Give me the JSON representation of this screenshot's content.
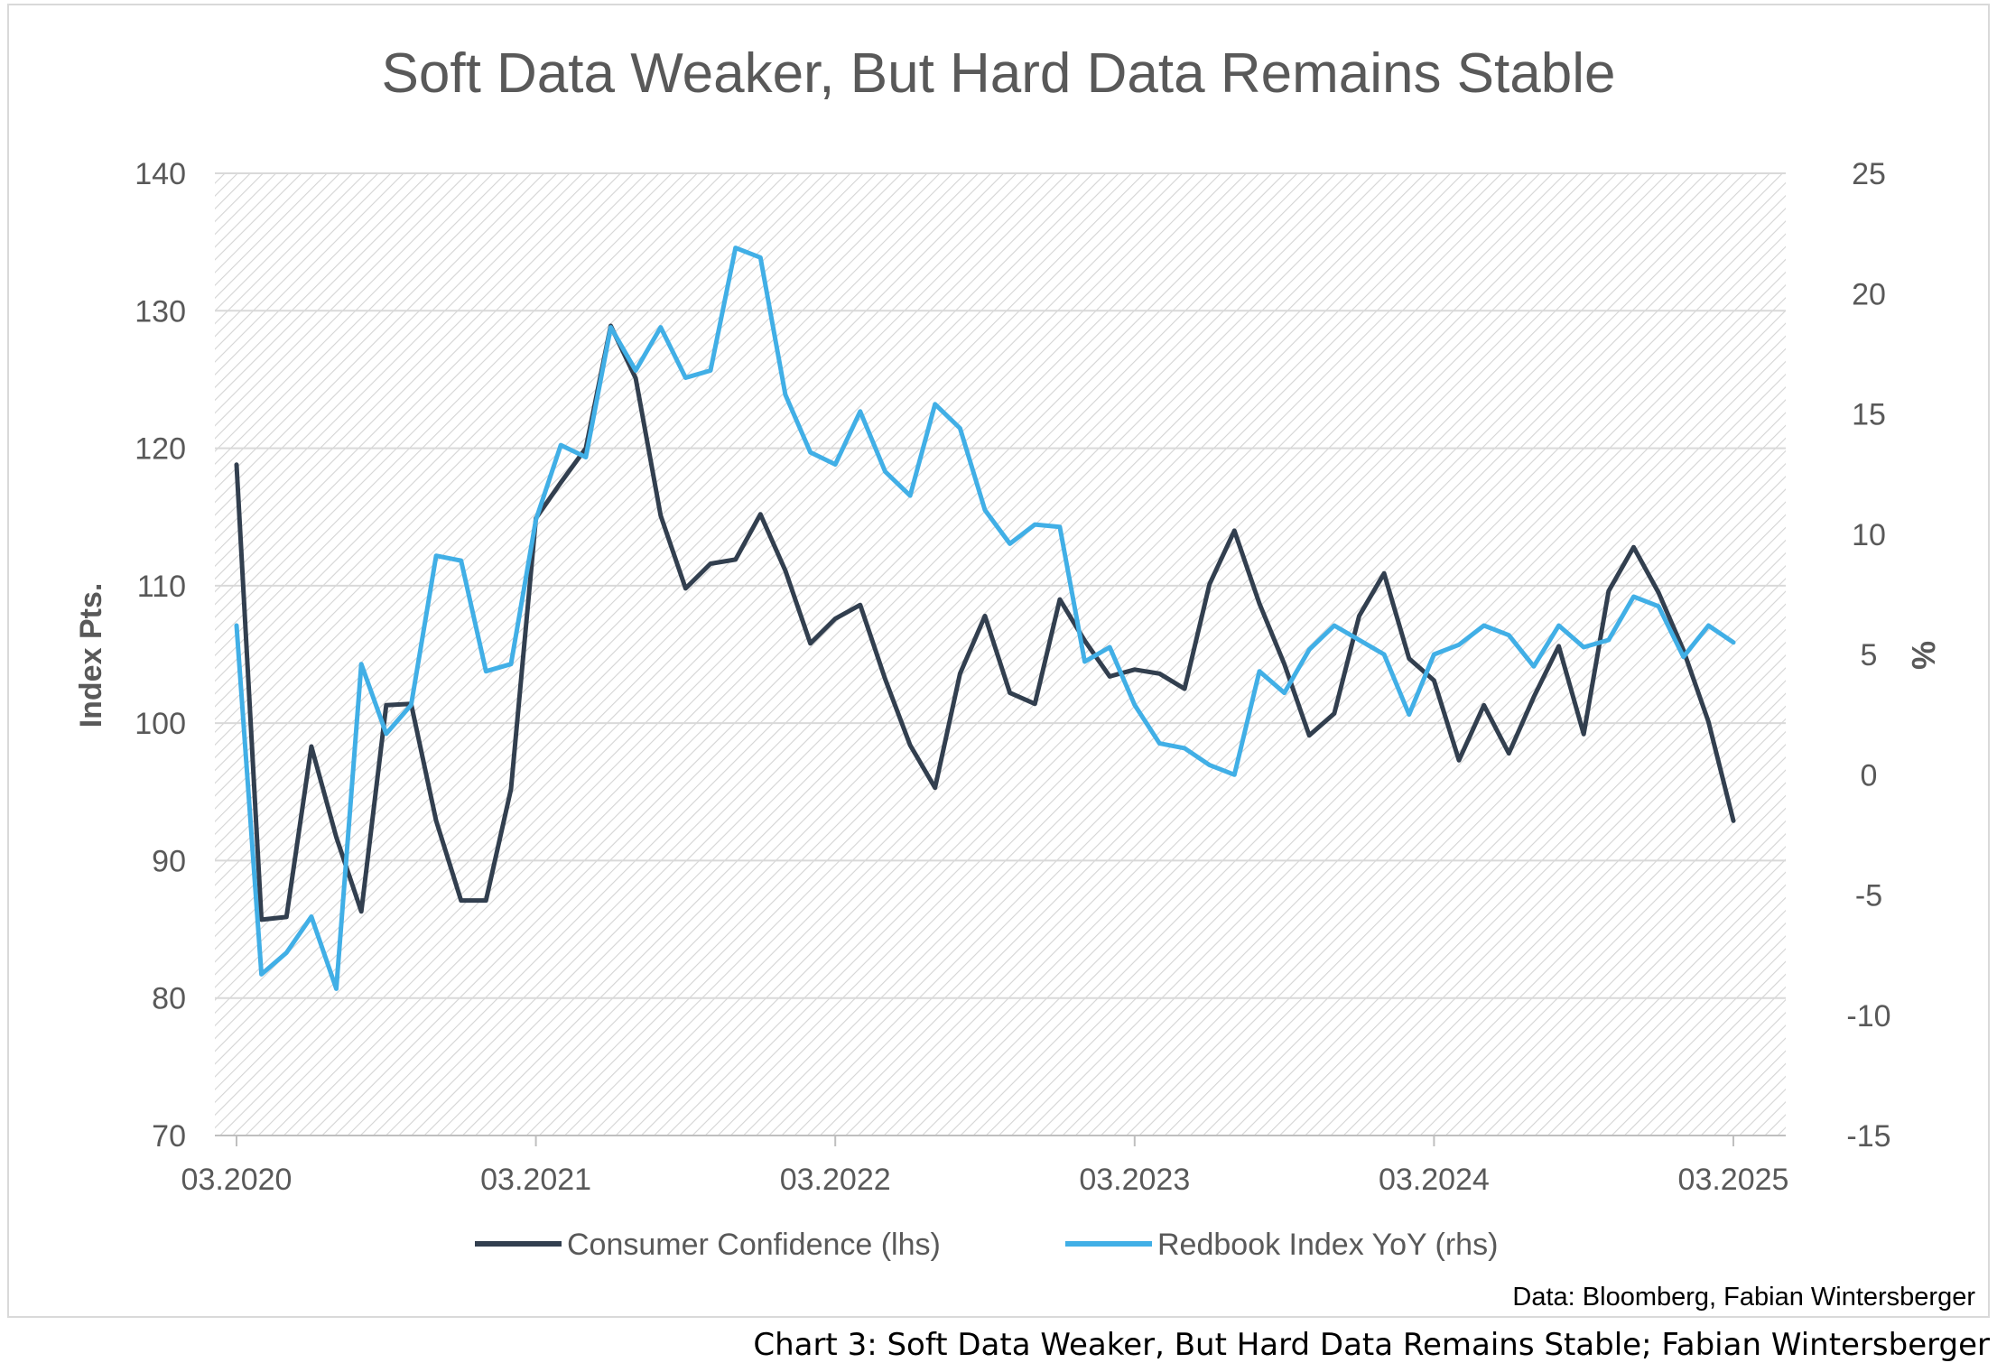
{
  "chart_data": {
    "type": "line",
    "title": "Soft Data Weaker, But Hard Data Remains Stable",
    "ylabel_left": "Index Pts.",
    "ylabel_right": "%",
    "ylim_left": [
      70,
      140
    ],
    "ylim_right": [
      -15,
      25
    ],
    "yticks_left": [
      "140",
      "130",
      "120",
      "110",
      "100",
      "90",
      "80",
      "70"
    ],
    "yticks_right": [
      "25",
      "20",
      "15",
      "10",
      "5",
      "0",
      "-5",
      "-10",
      "-15"
    ],
    "x_tick_labels": [
      "03.2020",
      "03.2021",
      "03.2022",
      "03.2023",
      "03.2024",
      "03.2025"
    ],
    "grid": true,
    "legend_position": "bottom",
    "source": "Data: Bloomberg, Fabian Wintersberger",
    "series": [
      {
        "name": "Consumer Confidence (lhs)",
        "axis": "left",
        "color": "#323f4f",
        "values": [
          118.8,
          85.7,
          85.9,
          98.3,
          91.7,
          86.3,
          101.3,
          101.4,
          92.9,
          87.1,
          87.1,
          95.2,
          114.9,
          117.5,
          120.0,
          128.9,
          125.1,
          115.1,
          109.8,
          111.6,
          111.9,
          115.2,
          111.1,
          105.8,
          107.6,
          108.6,
          103.2,
          98.4,
          95.3,
          103.6,
          107.8,
          102.2,
          101.4,
          109.0,
          106.0,
          103.4,
          103.9,
          103.6,
          102.5,
          110.1,
          114.0,
          108.7,
          104.3,
          99.1,
          100.7,
          107.8,
          110.9,
          104.7,
          103.1,
          97.3,
          101.3,
          97.8,
          101.9,
          105.6,
          99.2,
          109.6,
          112.8,
          109.5,
          105.3,
          100.1,
          92.9
        ]
      },
      {
        "name": "Redbook Index YoY (rhs)",
        "axis": "right",
        "color": "#41afe6",
        "values": [
          6.2,
          -8.3,
          -7.4,
          -5.9,
          -8.9,
          4.6,
          1.7,
          2.9,
          9.1,
          8.9,
          4.3,
          4.6,
          10.6,
          13.7,
          13.2,
          18.6,
          16.8,
          18.6,
          16.5,
          16.8,
          21.9,
          21.5,
          15.8,
          13.4,
          12.9,
          15.1,
          12.6,
          11.6,
          15.4,
          14.4,
          11.0,
          9.6,
          10.4,
          10.3,
          4.7,
          5.3,
          2.9,
          1.3,
          1.1,
          0.4,
          0.0,
          4.3,
          3.4,
          5.2,
          6.2,
          5.6,
          5.0,
          2.5,
          5.0,
          5.4,
          6.2,
          5.8,
          4.5,
          6.2,
          5.3,
          5.6,
          7.4,
          7.0,
          4.9,
          6.2,
          5.5
        ]
      }
    ]
  },
  "caption": "Chart 3: Soft Data Weaker, But Hard Data Remains Stable; Fabian Wintersberger"
}
